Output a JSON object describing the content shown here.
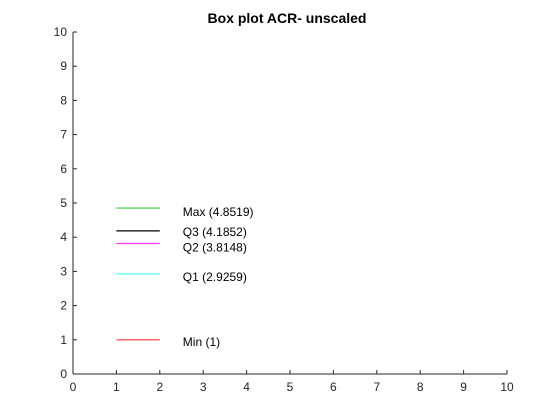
{
  "chart_data": {
    "type": "box",
    "title": "Box plot ACR- unscaled",
    "xlabel": "",
    "ylabel": "",
    "xlim": [
      0,
      10
    ],
    "ylim": [
      0,
      10
    ],
    "xticks": [
      "0",
      "1",
      "2",
      "3",
      "4",
      "5",
      "6",
      "7",
      "8",
      "9",
      "10"
    ],
    "yticks": [
      "0",
      "1",
      "2",
      "3",
      "4",
      "5",
      "6",
      "7",
      "8",
      "9",
      "10"
    ],
    "grid": false,
    "line_x_range": [
      1,
      2
    ],
    "stats": [
      {
        "key": "max",
        "label": "Max (4.8519)",
        "value": 4.8519,
        "color": "#33cc33"
      },
      {
        "key": "q3",
        "label": "Q3 (4.1852)",
        "value": 4.1852,
        "color": "#000000"
      },
      {
        "key": "q2",
        "label": "Q2 (3.8148)",
        "value": 3.8148,
        "color": "#ff33ff"
      },
      {
        "key": "q1",
        "label": "Q1 (2.9259)",
        "value": 2.9259,
        "color": "#33ffff"
      },
      {
        "key": "min",
        "label": "Min (1)",
        "value": 1,
        "color": "#ff3333"
      }
    ]
  }
}
